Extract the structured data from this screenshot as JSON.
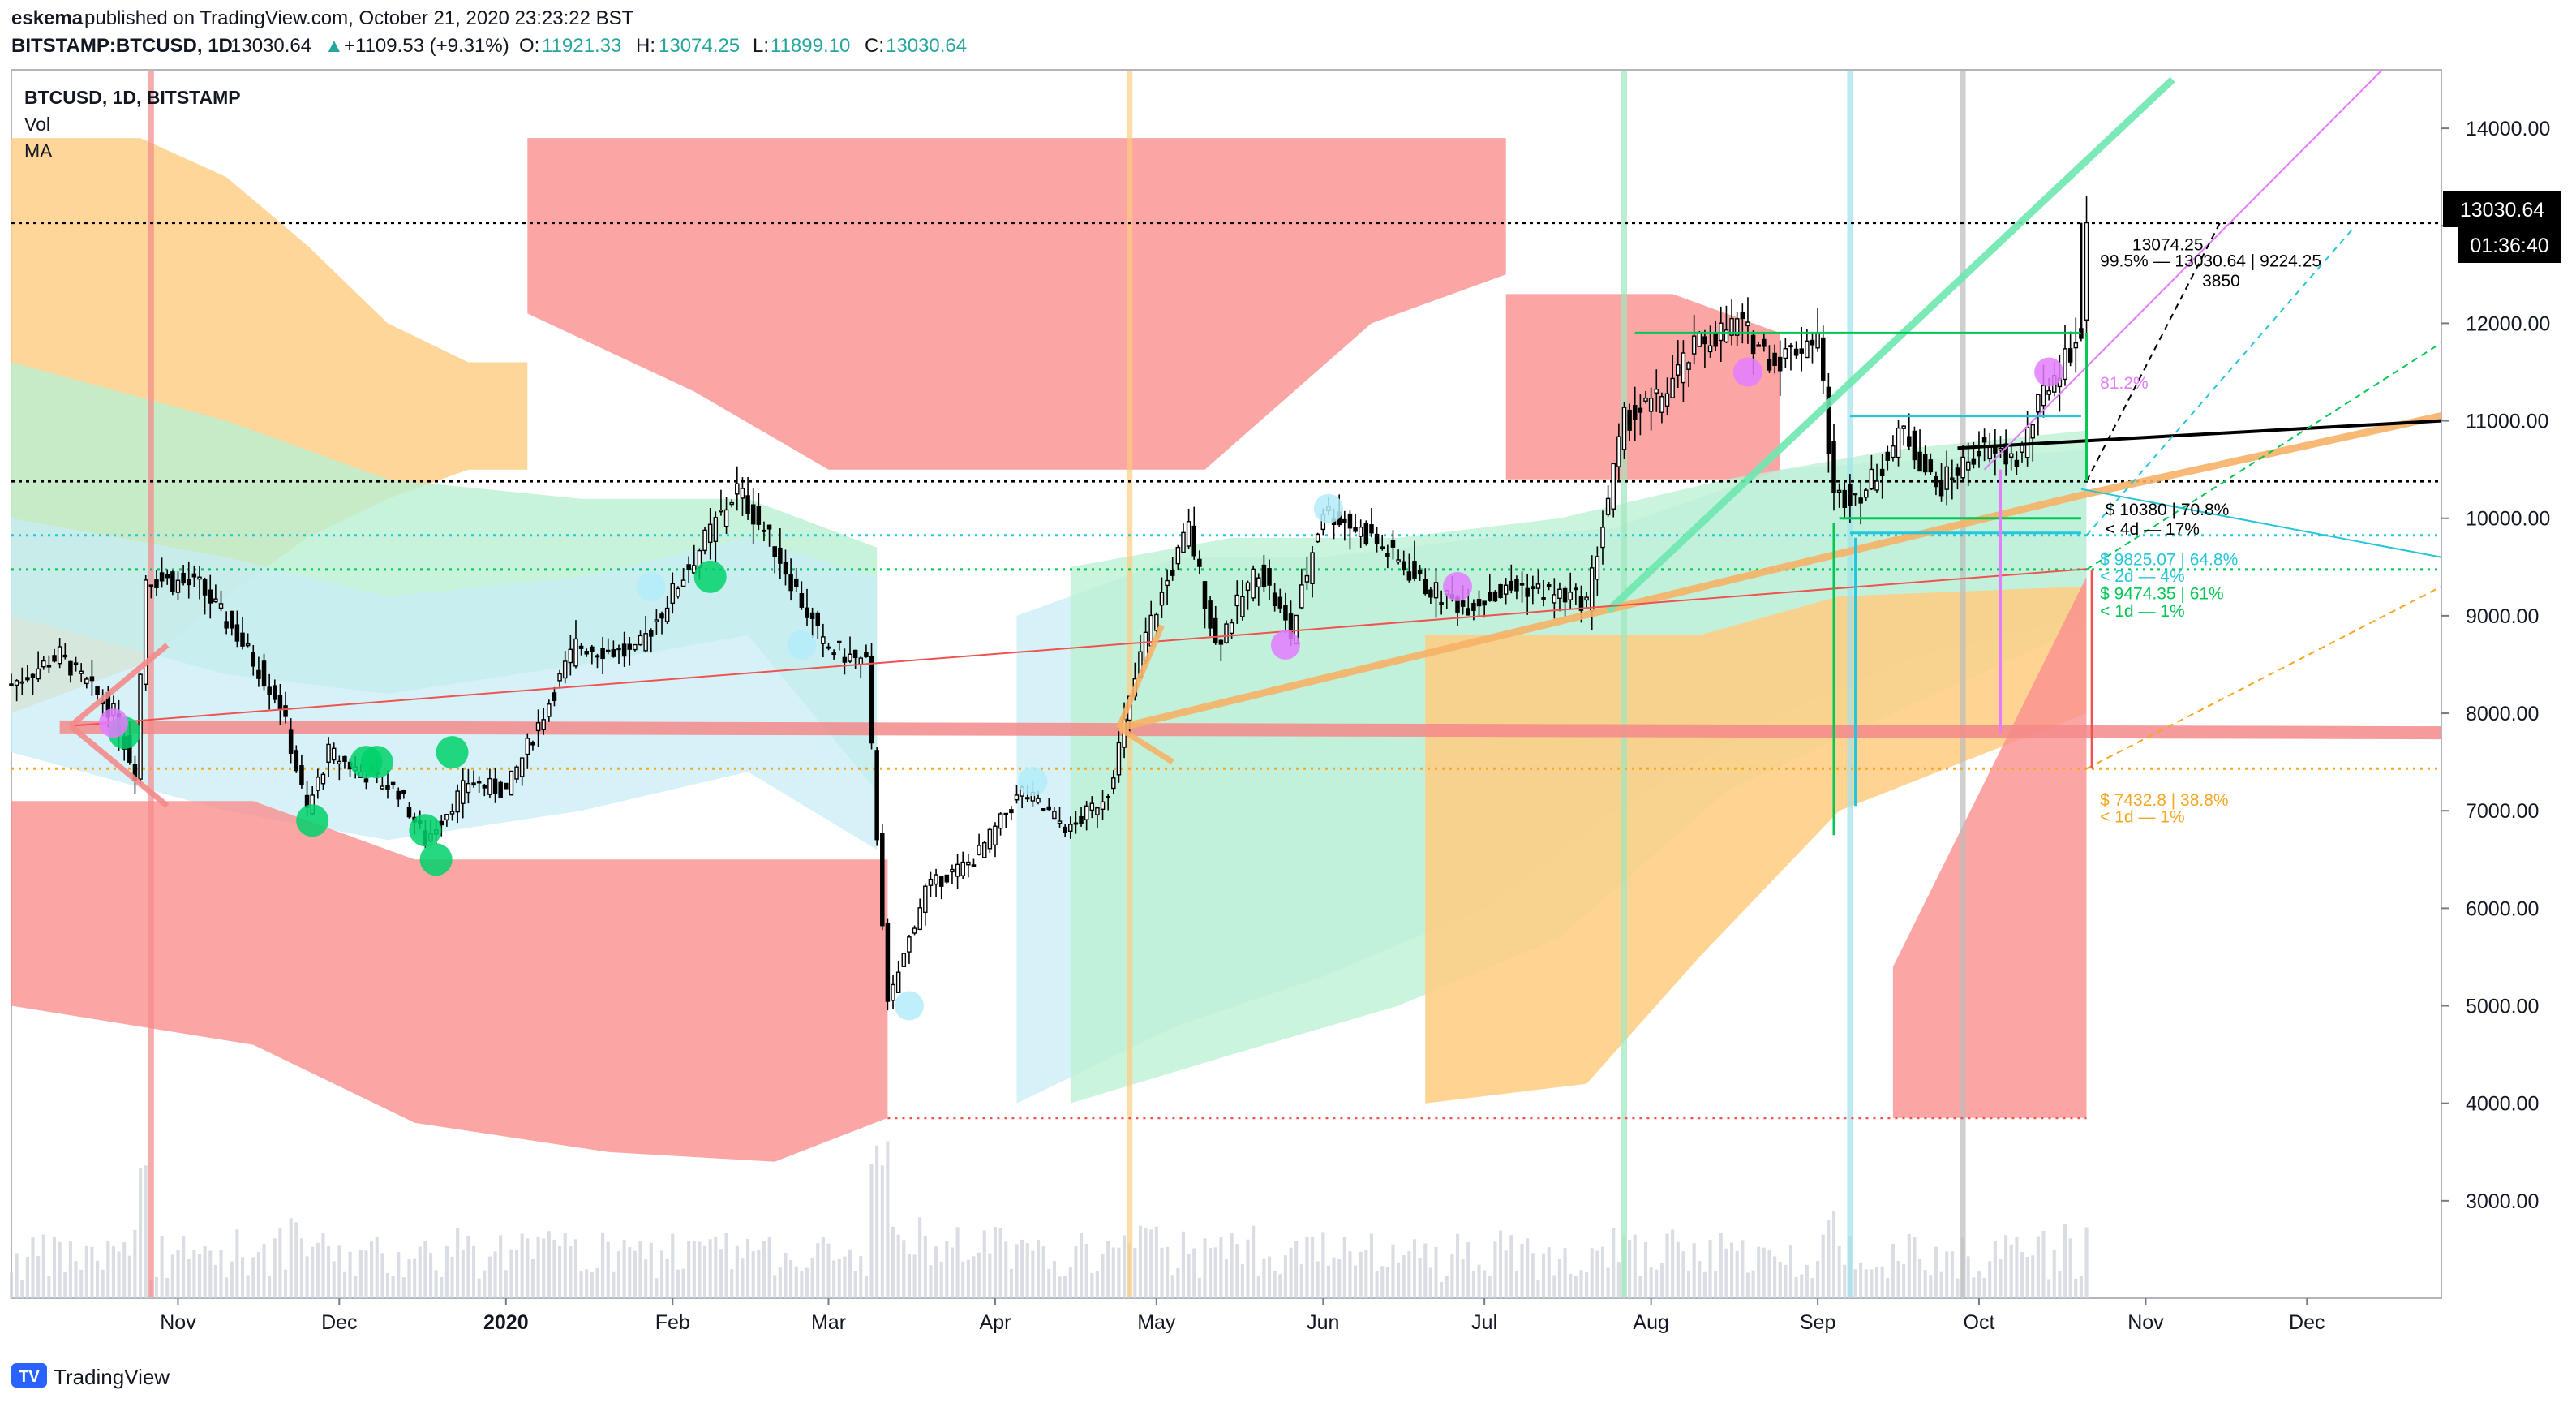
{
  "header": {
    "author": "eskema",
    "published_text": "published on TradingView.com, October 21, 2020 23:23:22 BST",
    "symbol_line": "BITSTAMP:BTCUSD, 1D",
    "last": "13030.64",
    "change": "+1109.53 (+9.31%)",
    "o_label": "O:",
    "o_value": "11921.33",
    "h_label": "H:",
    "h_value": "13074.25",
    "l_label": "L:",
    "l_value": "11899.10",
    "c_label": "C:",
    "c_value": "13030.64"
  },
  "legend": {
    "title": "BTCUSD, 1D, BITSTAMP",
    "items": [
      "Vol",
      "MA"
    ]
  },
  "price_badge": {
    "price": "13030.64",
    "countdown": "01:36:40"
  },
  "footer": {
    "brand": "TradingView"
  },
  "colors": {
    "up": "#000000",
    "down": "#000000",
    "green": "#00d26a",
    "pink": "#e37cff",
    "red_band": "#f45b5b",
    "orange": "#f5a623",
    "teal": "#26c6da",
    "black": "#000000"
  },
  "chart_data": {
    "type": "candlestick",
    "title": "BTCUSD, 1D, BITSTAMP",
    "ylim": [
      2000,
      14600
    ],
    "yticks": [
      3000,
      4000,
      5000,
      6000,
      7000,
      8000,
      9000,
      10000,
      11000,
      12000,
      13000,
      14000
    ],
    "ytick_labels": [
      "3000.00",
      "4000.00",
      "5000.00",
      "6000.00",
      "7000.00",
      "8000.00",
      "9000.00",
      "10000.00",
      "11000.00",
      "12000.00",
      "13000.00",
      "14000.00"
    ],
    "xticks": [
      "Nov",
      "Dec",
      "2020",
      "Feb",
      "Mar",
      "Apr",
      "May",
      "Jun",
      "Jul",
      "Aug",
      "Sep",
      "Oct",
      "Nov",
      "Dec"
    ],
    "x_range": [
      "2019-10-01",
      "2020-12-26"
    ],
    "key_prices": [
      {
        "name": "close",
        "value": 13030.64
      },
      {
        "name": "level-10380",
        "value": 10380
      },
      {
        "name": "level-9825",
        "value": 9825.07
      },
      {
        "name": "level-9474",
        "value": 9474.35
      },
      {
        "name": "level-7432",
        "value": 7432.8
      },
      {
        "name": "level-3850",
        "value": 3850
      }
    ],
    "annotations": [
      {
        "text": "13074.25",
        "color": "#000000"
      },
      {
        "text": "99.5% — 13030.64 | 9224.25",
        "color": "#000000"
      },
      {
        "text": "3850",
        "color": "#000000"
      },
      {
        "text": "81.2%",
        "color": "#e37cff"
      },
      {
        "text": "$ 10380 | 70.8%",
        "color": "#000000"
      },
      {
        "text": "< 4d — 17%",
        "color": "#000000"
      },
      {
        "text": "$ 9825.07 | 64.8%",
        "color": "#26c6da"
      },
      {
        "text": "< 2d — 4%",
        "color": "#26c6da"
      },
      {
        "text": "$ 9474.35 | 61%",
        "color": "#00c853"
      },
      {
        "text": "< 1d — 1%",
        "color": "#00c853"
      },
      {
        "text": "$ 7432.8 | 38.8%",
        "color": "#f5a623"
      },
      {
        "text": "< 1d — 1%",
        "color": "#f5a623"
      }
    ],
    "price_path": [
      [
        "2019-10-01",
        8300
      ],
      [
        "2019-10-10",
        8600
      ],
      [
        "2019-10-20",
        8000
      ],
      [
        "2019-10-24",
        7400
      ],
      [
        "2019-10-26",
        9400
      ],
      [
        "2019-11-05",
        9300
      ],
      [
        "2019-11-12",
        8800
      ],
      [
        "2019-11-20",
        8100
      ],
      [
        "2019-11-25",
        7000
      ],
      [
        "2019-11-29",
        7600
      ],
      [
        "2019-12-05",
        7400
      ],
      [
        "2019-12-12",
        7200
      ],
      [
        "2019-12-17",
        6700
      ],
      [
        "2019-12-25",
        7300
      ],
      [
        "2020-01-01",
        7200
      ],
      [
        "2020-01-08",
        8000
      ],
      [
        "2020-01-14",
        8700
      ],
      [
        "2020-01-25",
        8600
      ],
      [
        "2020-02-05",
        9600
      ],
      [
        "2020-02-13",
        10300
      ],
      [
        "2020-02-20",
        9700
      ],
      [
        "2020-02-29",
        8700
      ],
      [
        "2020-03-08",
        8500
      ],
      [
        "2020-03-12",
        5000
      ],
      [
        "2020-03-19",
        6200
      ],
      [
        "2020-03-28",
        6500
      ],
      [
        "2020-04-06",
        7200
      ],
      [
        "2020-04-15",
        6800
      ],
      [
        "2020-04-22",
        7200
      ],
      [
        "2020-04-29",
        8800
      ],
      [
        "2020-05-07",
        9900
      ],
      [
        "2020-05-12",
        8700
      ],
      [
        "2020-05-20",
        9500
      ],
      [
        "2020-05-26",
        8800
      ],
      [
        "2020-06-01",
        10100
      ],
      [
        "2020-06-10",
        9800
      ],
      [
        "2020-06-20",
        9300
      ],
      [
        "2020-06-27",
        9100
      ],
      [
        "2020-07-08",
        9300
      ],
      [
        "2020-07-20",
        9150
      ],
      [
        "2020-07-27",
        11000
      ],
      [
        "2020-08-02",
        11200
      ],
      [
        "2020-08-10",
        11800
      ],
      [
        "2020-08-17",
        12000
      ],
      [
        "2020-08-24",
        11600
      ],
      [
        "2020-09-01",
        11900
      ],
      [
        "2020-09-04",
        10200
      ],
      [
        "2020-09-10",
        10300
      ],
      [
        "2020-09-17",
        10900
      ],
      [
        "2020-09-23",
        10300
      ],
      [
        "2020-10-01",
        10700
      ],
      [
        "2020-10-08",
        10600
      ],
      [
        "2020-10-14",
        11400
      ],
      [
        "2020-10-20",
        11900
      ],
      [
        "2020-10-21",
        13030.64
      ]
    ]
  }
}
